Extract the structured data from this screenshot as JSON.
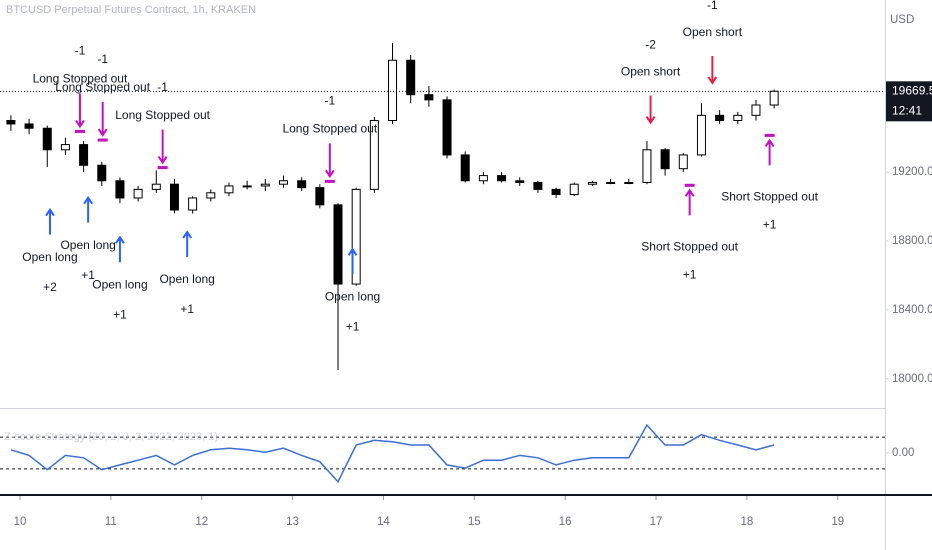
{
  "chart_data": [
    {
      "type": "candlestick",
      "title": "BTCUSD Perpetual Futures Contract, 1h, KRAKEN",
      "y_axis_label": "USD",
      "x": [
        9.9,
        10.1,
        10.3,
        10.5,
        10.7,
        10.9,
        11.1,
        11.3,
        11.5,
        11.7,
        11.9,
        12.1,
        12.3,
        12.5,
        12.7,
        12.9,
        13.1,
        13.3,
        13.5,
        13.7,
        13.9,
        14.1,
        14.3,
        14.5,
        14.7,
        14.9,
        15.1,
        15.3,
        15.5,
        15.7,
        15.9,
        16.1,
        16.3,
        16.5,
        16.7,
        16.9,
        17.1,
        17.3,
        17.5,
        17.7,
        17.9,
        18.1,
        18.3
      ],
      "open": [
        19500,
        19480,
        19455,
        19330,
        19360,
        19240,
        19150,
        19050,
        19100,
        19130,
        18980,
        19050,
        19080,
        19120,
        19120,
        19130,
        19150,
        19110,
        19010,
        18550,
        19100,
        19500,
        19850,
        19650,
        19620,
        19300,
        19150,
        19180,
        19150,
        19140,
        19100,
        19070,
        19130,
        19140,
        19140,
        19140,
        19330,
        19220,
        19300,
        19530,
        19500,
        19530,
        19590
      ],
      "high": [
        19530,
        19510,
        19470,
        19400,
        19380,
        19260,
        19170,
        19120,
        19210,
        19160,
        19060,
        19100,
        19140,
        19150,
        19160,
        19180,
        19170,
        19130,
        19020,
        19110,
        19520,
        19950,
        19880,
        19700,
        19640,
        19320,
        19200,
        19200,
        19170,
        19150,
        19110,
        19140,
        19150,
        19160,
        19160,
        19380,
        19340,
        19310,
        19600,
        19560,
        19550,
        19620,
        19680
      ],
      "low": [
        19440,
        19420,
        19230,
        19300,
        19200,
        19120,
        19020,
        19030,
        19080,
        18960,
        18960,
        19030,
        19060,
        19100,
        19090,
        19110,
        19090,
        18990,
        18050,
        18540,
        19080,
        19480,
        19600,
        19580,
        19280,
        19140,
        19130,
        19140,
        19120,
        19080,
        19050,
        19060,
        19120,
        19130,
        19130,
        19130,
        19180,
        19200,
        19290,
        19480,
        19480,
        19500,
        19570
      ],
      "close": [
        19480,
        19455,
        19330,
        19360,
        19240,
        19150,
        19050,
        19100,
        19130,
        18980,
        19050,
        19080,
        19120,
        19120,
        19130,
        19150,
        19110,
        19010,
        18550,
        19100,
        19500,
        19850,
        19650,
        19620,
        19300,
        19150,
        19180,
        19150,
        19140,
        19100,
        19070,
        19130,
        19140,
        19140,
        19140,
        19330,
        19220,
        19300,
        19530,
        19500,
        19530,
        19590,
        19670
      ],
      "up_color": "#ffffff",
      "down_color": "#000000",
      "border_color": "#000000",
      "xlim": [
        9.78,
        19.52
      ],
      "xticks": [
        10,
        11,
        12,
        13,
        14,
        15,
        16,
        17,
        18,
        19
      ],
      "ylim": [
        17830,
        20200
      ],
      "yticks": [
        {
          "value": 18000,
          "label": "18000.00"
        },
        {
          "value": 18400,
          "label": "18400.00"
        },
        {
          "value": 18800,
          "label": "18800.00"
        },
        {
          "value": 19200,
          "label": "19200.00"
        }
      ],
      "last_price": {
        "value": 19669.5,
        "label": "19669.50"
      },
      "countdown": "12:41",
      "annotations": [
        {
          "kind": "long_entry",
          "x": 10.33,
          "price": 19040,
          "text": "Open long",
          "qty": "+2",
          "color": "#2962ff"
        },
        {
          "kind": "long_entry",
          "x": 10.75,
          "price": 19110,
          "text": "Open long",
          "qty": "+1",
          "color": "#2962ff"
        },
        {
          "kind": "long_entry",
          "x": 11.1,
          "price": 18880,
          "text": "Open long",
          "qty": "+1",
          "color": "#2962ff"
        },
        {
          "kind": "long_entry",
          "x": 11.84,
          "price": 18910,
          "text": "Open long",
          "qty": "+1",
          "color": "#2962ff"
        },
        {
          "kind": "long_entry",
          "x": 13.66,
          "price": 18810,
          "text": "Open long",
          "qty": "+1",
          "color": "#2962ff"
        },
        {
          "kind": "long_exit",
          "x": 10.66,
          "price": 19390,
          "text": "Long Stopped out",
          "qty": "-1",
          "color": "#c511c5"
        },
        {
          "kind": "long_exit",
          "x": 10.91,
          "price": 19340,
          "text": "Long Stopped out",
          "qty": "-1",
          "color": "#c511c5"
        },
        {
          "kind": "long_exit",
          "x": 11.57,
          "price": 19180,
          "text": "Long Stopped out",
          "qty": "-1",
          "color": "#c511c5"
        },
        {
          "kind": "long_exit",
          "x": 13.41,
          "price": 19100,
          "text": "Long Stopped out",
          "qty": "-1",
          "color": "#c511c5"
        },
        {
          "kind": "short_entry",
          "x": 16.94,
          "price": 19430,
          "text": "Open short",
          "qty": "-2",
          "color": "#e91e4d"
        },
        {
          "kind": "short_entry",
          "x": 17.62,
          "price": 19660,
          "text": "Open short",
          "qty": "-1",
          "color": "#e91e4d"
        },
        {
          "kind": "short_exit",
          "x": 17.37,
          "price": 19170,
          "text": "Short Stopped out",
          "qty": "+1",
          "color": "#c511c5"
        },
        {
          "kind": "short_exit",
          "x": 18.25,
          "price": 19460,
          "text": "Short Stopped out",
          "qty": "+1",
          "color": "#c511c5"
        }
      ]
    },
    {
      "type": "line",
      "title": "Z-score Strategy (20, 2, 0, 2, 2022, 2023, 1)",
      "x": [
        9.9,
        10.1,
        10.3,
        10.5,
        10.7,
        10.9,
        11.1,
        11.3,
        11.5,
        11.7,
        11.9,
        12.1,
        12.3,
        12.5,
        12.7,
        12.9,
        13.1,
        13.3,
        13.5,
        13.7,
        13.9,
        14.1,
        14.3,
        14.5,
        14.7,
        14.9,
        15.1,
        15.3,
        15.5,
        15.7,
        15.9,
        16.1,
        16.3,
        16.5,
        16.7,
        16.9,
        17.1,
        17.3,
        17.5,
        17.7,
        17.9,
        18.1,
        18.3
      ],
      "values": [
        0.4,
        -0.3,
        -2.1,
        -0.3,
        -0.6,
        -2.1,
        -1.5,
        -0.9,
        -0.3,
        -1.5,
        -0.3,
        0.4,
        0.6,
        0.4,
        0.1,
        0.6,
        -0.3,
        -1.1,
        -3.6,
        1.0,
        1.6,
        1.4,
        1.0,
        1.0,
        -1.5,
        -1.9,
        -0.9,
        -0.9,
        -0.3,
        -0.6,
        -1.5,
        -0.9,
        -0.6,
        -0.6,
        -0.6,
        3.5,
        1.0,
        1.0,
        2.3,
        1.6,
        1.0,
        0.4,
        1.0
      ],
      "color": "#3a6fd8",
      "ylim": [
        -4.9,
        5.4
      ],
      "yticks": [
        {
          "value": 0,
          "label": "0.00"
        }
      ],
      "hlines": [
        2,
        -2
      ]
    }
  ]
}
